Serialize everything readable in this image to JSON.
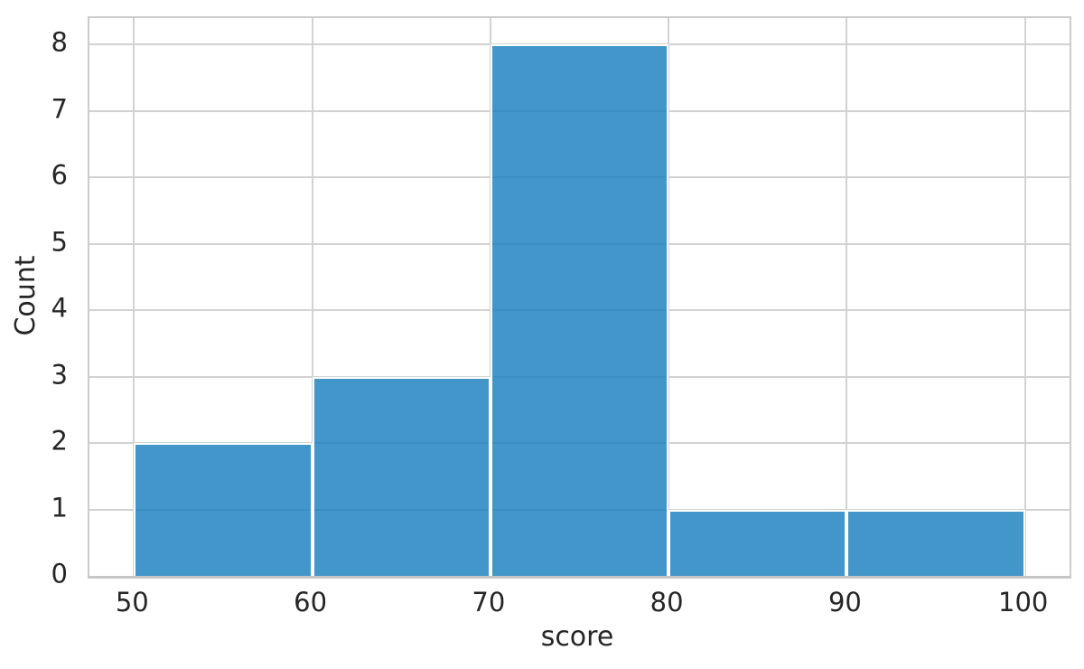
{
  "chart_data": {
    "type": "bar",
    "subtype": "histogram",
    "title": "",
    "xlabel": "score",
    "ylabel": "Count",
    "bin_edges": [
      50,
      60,
      70,
      80,
      90,
      100
    ],
    "counts": [
      2,
      3,
      8,
      1,
      1
    ],
    "xticks": [
      50,
      60,
      70,
      80,
      90,
      100
    ],
    "yticks": [
      0,
      1,
      2,
      3,
      4,
      5,
      6,
      7,
      8
    ],
    "xlim": [
      47.5,
      102.5
    ],
    "ylim": [
      0,
      8.4
    ],
    "grid": true,
    "legend": false,
    "colors": {
      "bar_fill": "rgba(26,127,190,0.82)",
      "bar_fill_hex": "#4396c9",
      "bar_edge": "#ffffff",
      "grid": "#d2d2d2",
      "spine": "#cccccc",
      "text": "#262626",
      "background": "#ffffff"
    }
  }
}
